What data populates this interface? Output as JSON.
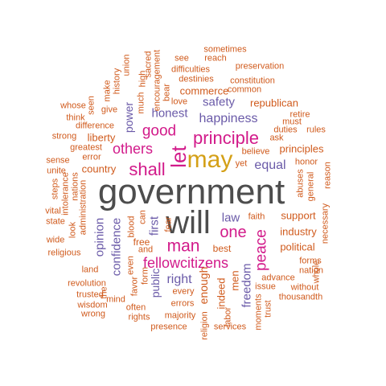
{
  "colors": {
    "gray": "#4d4d4d",
    "gold": "#d4a017",
    "magenta": "#d21a8a",
    "purple": "#6a5aa8",
    "orange": "#d05a1c"
  },
  "words": [
    {
      "text": "government",
      "color": "gray"
    },
    {
      "text": "will",
      "color": "gray"
    },
    {
      "text": "may",
      "color": "gold"
    },
    {
      "text": "let",
      "color": "magenta"
    },
    {
      "text": "principle",
      "color": "magenta"
    },
    {
      "text": "shall",
      "color": "magenta"
    },
    {
      "text": "others",
      "color": "magenta"
    },
    {
      "text": "good",
      "color": "magenta"
    },
    {
      "text": "one",
      "color": "magenta"
    },
    {
      "text": "man",
      "color": "magenta"
    },
    {
      "text": "peace",
      "color": "magenta"
    },
    {
      "text": "fellowcitizens",
      "color": "magenta"
    },
    {
      "text": "happiness",
      "color": "purple"
    },
    {
      "text": "equal",
      "color": "purple"
    },
    {
      "text": "honest",
      "color": "purple"
    },
    {
      "text": "safety",
      "color": "purple"
    },
    {
      "text": "power",
      "color": "purple"
    },
    {
      "text": "opinion",
      "color": "purple"
    },
    {
      "text": "confidence",
      "color": "purple"
    },
    {
      "text": "first",
      "color": "purple"
    },
    {
      "text": "law",
      "color": "purple"
    },
    {
      "text": "right",
      "color": "purple"
    },
    {
      "text": "public",
      "color": "purple"
    },
    {
      "text": "freedom",
      "color": "purple"
    },
    {
      "text": "republican",
      "color": "orange"
    },
    {
      "text": "commerce",
      "color": "orange"
    },
    {
      "text": "principles",
      "color": "orange"
    },
    {
      "text": "country",
      "color": "orange"
    },
    {
      "text": "liberty",
      "color": "orange"
    },
    {
      "text": "support",
      "color": "orange"
    },
    {
      "text": "industry",
      "color": "orange"
    },
    {
      "text": "political",
      "color": "orange"
    },
    {
      "text": "sometimes",
      "color": "orange"
    },
    {
      "text": "see",
      "color": "orange"
    },
    {
      "text": "reach",
      "color": "orange"
    },
    {
      "text": "preservation",
      "color": "orange"
    },
    {
      "text": "sacred",
      "color": "orange"
    },
    {
      "text": "union",
      "color": "orange"
    },
    {
      "text": "history",
      "color": "orange"
    },
    {
      "text": "encouragement",
      "color": "orange"
    },
    {
      "text": "difficulties",
      "color": "orange"
    },
    {
      "text": "destinies",
      "color": "orange"
    },
    {
      "text": "constitution",
      "color": "orange"
    },
    {
      "text": "common",
      "color": "orange"
    },
    {
      "text": "make",
      "color": "orange"
    },
    {
      "text": "high",
      "color": "orange"
    },
    {
      "text": "bear",
      "color": "orange"
    },
    {
      "text": "love",
      "color": "orange"
    },
    {
      "text": "retire",
      "color": "orange"
    },
    {
      "text": "must",
      "color": "orange"
    },
    {
      "text": "whose",
      "color": "orange"
    },
    {
      "text": "seen",
      "color": "orange"
    },
    {
      "text": "give",
      "color": "orange"
    },
    {
      "text": "much",
      "color": "orange"
    },
    {
      "text": "think",
      "color": "orange"
    },
    {
      "text": "difference",
      "color": "orange"
    },
    {
      "text": "duties",
      "color": "orange"
    },
    {
      "text": "rules",
      "color": "orange"
    },
    {
      "text": "strong",
      "color": "orange"
    },
    {
      "text": "ask",
      "color": "orange"
    },
    {
      "text": "believe",
      "color": "orange"
    },
    {
      "text": "greatest",
      "color": "orange"
    },
    {
      "text": "yet",
      "color": "orange"
    },
    {
      "text": "error",
      "color": "orange"
    },
    {
      "text": "sense",
      "color": "orange"
    },
    {
      "text": "honor",
      "color": "orange"
    },
    {
      "text": "reason",
      "color": "orange"
    },
    {
      "text": "unite",
      "color": "orange"
    },
    {
      "text": "abuses",
      "color": "orange"
    },
    {
      "text": "general",
      "color": "orange"
    },
    {
      "text": "steps",
      "color": "orange"
    },
    {
      "text": "intolerance",
      "color": "orange"
    },
    {
      "text": "nations",
      "color": "orange"
    },
    {
      "text": "vital",
      "color": "orange"
    },
    {
      "text": "state",
      "color": "orange"
    },
    {
      "text": "administration",
      "color": "orange"
    },
    {
      "text": "necessary",
      "color": "orange"
    },
    {
      "text": "look",
      "color": "orange"
    },
    {
      "text": "can",
      "color": "orange"
    },
    {
      "text": "faith",
      "color": "orange"
    },
    {
      "text": "wide",
      "color": "orange"
    },
    {
      "text": "religious",
      "color": "orange"
    },
    {
      "text": "free",
      "color": "orange"
    },
    {
      "text": "best",
      "color": "orange"
    },
    {
      "text": "and",
      "color": "orange"
    },
    {
      "text": "fear",
      "color": "orange"
    },
    {
      "text": "blood",
      "color": "orange"
    },
    {
      "text": "forms",
      "color": "orange"
    },
    {
      "text": "nation",
      "color": "orange"
    },
    {
      "text": "whole",
      "color": "orange"
    },
    {
      "text": "land",
      "color": "orange"
    },
    {
      "text": "even",
      "color": "orange"
    },
    {
      "text": "form",
      "color": "orange"
    },
    {
      "text": "revolution",
      "color": "orange"
    },
    {
      "text": "enough",
      "color": "orange"
    },
    {
      "text": "men",
      "color": "orange"
    },
    {
      "text": "indeed",
      "color": "orange"
    },
    {
      "text": "advance",
      "color": "orange"
    },
    {
      "text": "issue",
      "color": "orange"
    },
    {
      "text": "without",
      "color": "orange"
    },
    {
      "text": "trusted",
      "color": "orange"
    },
    {
      "text": "favor",
      "color": "orange"
    },
    {
      "text": "the",
      "color": "orange"
    },
    {
      "text": "every",
      "color": "orange"
    },
    {
      "text": "thousandth",
      "color": "orange"
    },
    {
      "text": "mind",
      "color": "orange"
    },
    {
      "text": "wisdom",
      "color": "orange"
    },
    {
      "text": "wrong",
      "color": "orange"
    },
    {
      "text": "often",
      "color": "orange"
    },
    {
      "text": "errors",
      "color": "orange"
    },
    {
      "text": "labor",
      "color": "orange"
    },
    {
      "text": "moments",
      "color": "orange"
    },
    {
      "text": "trust",
      "color": "orange"
    },
    {
      "text": "rights",
      "color": "orange"
    },
    {
      "text": "majority",
      "color": "orange"
    },
    {
      "text": "presence",
      "color": "orange"
    },
    {
      "text": "religion",
      "color": "orange"
    },
    {
      "text": "services",
      "color": "orange"
    }
  ]
}
